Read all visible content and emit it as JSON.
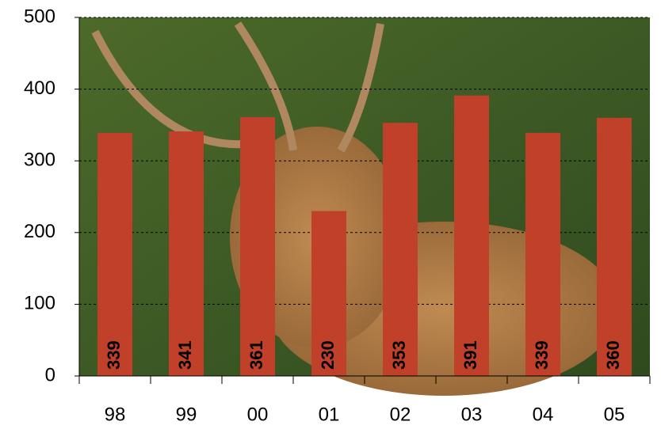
{
  "chart_data": {
    "type": "bar",
    "categories": [
      "98",
      "99",
      "00",
      "01",
      "02",
      "03",
      "04",
      "05"
    ],
    "values": [
      339,
      341,
      361,
      230,
      353,
      391,
      339,
      360
    ],
    "color": "#c0402a",
    "ylim": [
      0,
      500
    ],
    "yticks": [
      0,
      100,
      200,
      300,
      400,
      500
    ],
    "grid": true
  }
}
